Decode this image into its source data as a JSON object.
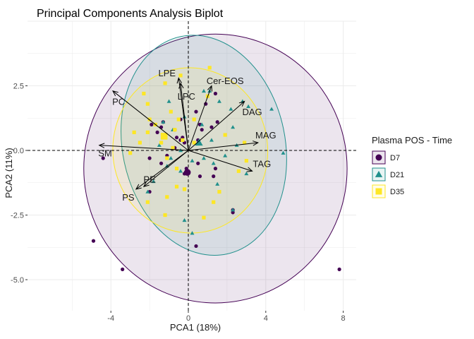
{
  "chart_data": {
    "type": "scatter",
    "title": "Principal Components Analysis Biplot",
    "xlabel": "PCA1 (18%)",
    "ylabel": "PCA2 (11%)",
    "xlim": [
      -6.2,
      8.9
    ],
    "ylim": [
      -6.0,
      5.0
    ],
    "x_ticks": [
      -4,
      0,
      4,
      8
    ],
    "y_ticks": [
      2.5,
      0.0,
      -2.5,
      -5.0
    ],
    "grid": true,
    "reference_lines": [
      {
        "axis": "x",
        "value": 0,
        "style": "dashed"
      },
      {
        "axis": "y",
        "value": 0,
        "style": "dashed"
      }
    ],
    "legend": {
      "title": "Plasma POS - Time",
      "position": "right",
      "entries": [
        {
          "label": "D7",
          "color": "#440154",
          "shape": "circle"
        },
        {
          "label": "D21",
          "color": "#21908C",
          "shape": "triangle"
        },
        {
          "label": "D35",
          "color": "#FDE725",
          "shape": "square"
        }
      ]
    },
    "ellipses": [
      {
        "group": "D7",
        "cx": 1.4,
        "cy": -0.7,
        "rx": 6.8,
        "ry": 5.2,
        "angle": 0,
        "fill": "#440154",
        "stroke": "#440154"
      },
      {
        "group": "D21",
        "cx": 0.8,
        "cy": 0.2,
        "rx": 4.2,
        "ry": 4.3,
        "angle": -12,
        "fill": "#21908C",
        "stroke": "#21908C"
      },
      {
        "group": "D35",
        "cx": 0.1,
        "cy": 0.0,
        "rx": 4.0,
        "ry": 3.2,
        "angle": -5,
        "fill": "#FDE725",
        "stroke": "#FDE725"
      }
    ],
    "loadings": [
      {
        "label": "LPE",
        "x": -0.5,
        "y": 2.8,
        "lx": -1.1,
        "ly": 3.0
      },
      {
        "label": "LPC",
        "x": -0.4,
        "y": 2.6,
        "lx": -0.1,
        "ly": 2.1
      },
      {
        "label": "Cer-EOS",
        "x": 1.2,
        "y": 2.5,
        "lx": 1.9,
        "ly": 2.7
      },
      {
        "label": "PC",
        "x": -3.9,
        "y": 2.3,
        "lx": -3.6,
        "ly": 1.9
      },
      {
        "label": "DAG",
        "x": 2.9,
        "y": 1.9,
        "lx": 3.3,
        "ly": 1.5
      },
      {
        "label": "MAG",
        "x": 3.6,
        "y": 0.3,
        "lx": 4.0,
        "ly": 0.6
      },
      {
        "label": "SM",
        "x": -4.6,
        "y": 0.2,
        "lx": -4.3,
        "ly": -0.1
      },
      {
        "label": "TAG",
        "x": 3.3,
        "y": -0.8,
        "lx": 3.8,
        "ly": -0.5
      },
      {
        "label": "PE",
        "x": -2.3,
        "y": -1.4,
        "lx": -2.0,
        "ly": -1.1
      },
      {
        "label": "PS",
        "x": -2.7,
        "y": -1.5,
        "lx": -3.1,
        "ly": -1.8
      }
    ],
    "series": [
      {
        "name": "D7",
        "centroid": [
          -0.05,
          -0.85
        ],
        "points": [
          [
            -4.4,
            -0.3
          ],
          [
            -4.9,
            -3.5
          ],
          [
            -3.4,
            -4.6
          ],
          [
            7.8,
            -4.6
          ],
          [
            0.4,
            -3.7
          ],
          [
            2.3,
            -2.3
          ],
          [
            2.3,
            -2.4
          ],
          [
            1.4,
            -0.7
          ],
          [
            1.3,
            -1.0
          ],
          [
            0.6,
            -1.0
          ],
          [
            0.5,
            -0.5
          ],
          [
            -0.1,
            -0.7
          ],
          [
            -0.2,
            -0.9
          ],
          [
            0.5,
            0.4
          ],
          [
            -0.3,
            0.5
          ],
          [
            -0.2,
            0.3
          ],
          [
            -0.6,
            0.5
          ],
          [
            -0.7,
            0.8
          ],
          [
            -1.6,
            0.7
          ],
          [
            -1.9,
            1.0
          ],
          [
            -1.3,
            1.1
          ],
          [
            -0.4,
            1.2
          ],
          [
            0.4,
            1.5
          ],
          [
            0.9,
            1.8
          ],
          [
            1.4,
            2.2
          ],
          [
            1.5,
            1.1
          ],
          [
            0.7,
            0.8
          ],
          [
            1.2,
            0.9
          ],
          [
            -1.4,
            -0.5
          ],
          [
            -1.1,
            -0.2
          ],
          [
            -2.0,
            -0.3
          ],
          [
            -0.7,
            0.1
          ],
          [
            -2.0,
            -1.6
          ],
          [
            0.6,
            1.0
          ],
          [
            -1.4,
            0.9
          ],
          [
            -0.4,
            0.4
          ]
        ]
      },
      {
        "name": "D21",
        "centroid": [
          0.55,
          0.3
        ],
        "points": [
          [
            4.9,
            -0.1
          ],
          [
            4.3,
            1.6
          ],
          [
            3.1,
            1.7
          ],
          [
            2.3,
            0.9
          ],
          [
            2.5,
            0.2
          ],
          [
            1.9,
            -0.2
          ],
          [
            1.3,
            -0.5
          ],
          [
            0.8,
            -0.3
          ],
          [
            0.2,
            -0.4
          ],
          [
            -0.4,
            -0.8
          ],
          [
            -0.9,
            -0.3
          ],
          [
            -1.1,
            -0.6
          ],
          [
            -1.8,
            -1.2
          ],
          [
            -2.1,
            -1.6
          ],
          [
            -1.3,
            1.1
          ],
          [
            -0.8,
            0.8
          ],
          [
            -0.2,
            1.3
          ],
          [
            0.8,
            2.3
          ],
          [
            1.1,
            2.3
          ],
          [
            1.6,
            1.9
          ],
          [
            2.2,
            1.6
          ],
          [
            0.2,
            -3.2
          ],
          [
            -0.2,
            -2.7
          ],
          [
            2.3,
            -2.3
          ],
          [
            1.5,
            -1.3
          ],
          [
            3.0,
            -0.9
          ],
          [
            -1.5,
            0.2
          ],
          [
            -0.4,
            0.0
          ],
          [
            -1.0,
            1.9
          ],
          [
            0.7,
            1.0
          ],
          [
            2.8,
            1.9
          ],
          [
            1.2,
            0.4
          ]
        ]
      },
      {
        "name": "D35",
        "centroid": [
          -1.25,
          0.55
        ],
        "points": [
          [
            -2.3,
            2.2
          ],
          [
            -2.1,
            1.8
          ],
          [
            -2.0,
            1.2
          ],
          [
            -1.7,
            1.0
          ],
          [
            -2.8,
            0.7
          ],
          [
            -2.5,
            0.3
          ],
          [
            -2.1,
            0.7
          ],
          [
            -1.4,
            0.3
          ],
          [
            -0.8,
            0.1
          ],
          [
            -1.1,
            -0.3
          ],
          [
            -0.6,
            -0.7
          ],
          [
            -0.6,
            -1.4
          ],
          [
            -1.1,
            -1.8
          ],
          [
            -2.1,
            -2.0
          ],
          [
            -1.2,
            -2.5
          ],
          [
            0.8,
            -2.6
          ],
          [
            1.3,
            -2.0
          ],
          [
            1.6,
            -1.6
          ],
          [
            2.6,
            -0.8
          ],
          [
            3.0,
            -0.4
          ],
          [
            2.9,
            0.3
          ],
          [
            1.9,
            0.6
          ],
          [
            0.3,
            0.3
          ],
          [
            -0.3,
            0.4
          ],
          [
            -0.5,
            1.2
          ],
          [
            -0.9,
            1.5
          ],
          [
            0.3,
            1.2
          ],
          [
            -1.2,
            2.6
          ],
          [
            -0.4,
            2.9
          ],
          [
            1.1,
            3.2
          ],
          [
            1.0,
            2.1
          ],
          [
            -3.0,
            -0.1
          ],
          [
            -0.2,
            -1.5
          ],
          [
            -0.7,
            0.8
          ]
        ]
      }
    ]
  }
}
